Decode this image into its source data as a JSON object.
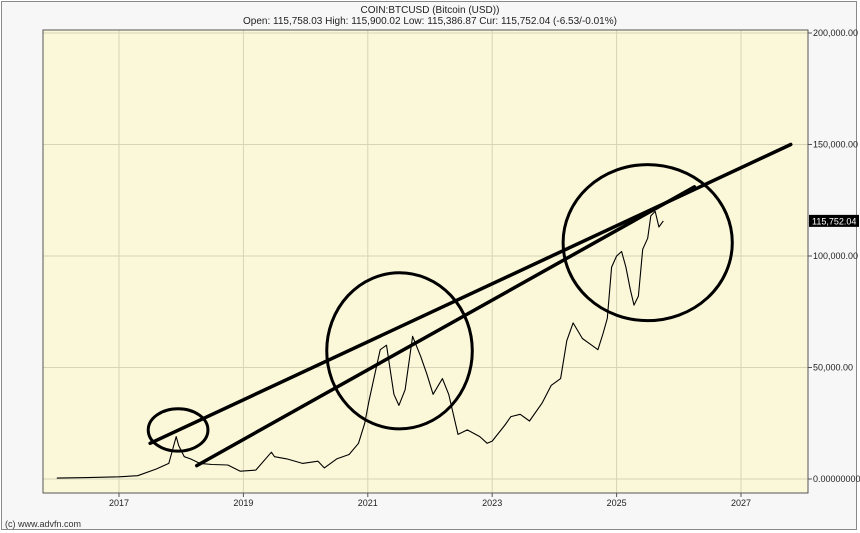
{
  "header": {
    "symbol_line": "COIN:BTCUSD (Bitcoin (USD))",
    "ohlc_line": "Open: 115,758.03 High: 115,900.02 Low: 115,386.87 Cur: 115,752.04 (-6.53/-0.01%)"
  },
  "footer": {
    "credit": "(c) www.advfn.com"
  },
  "colors": {
    "plot_background": "#fbf8d9",
    "grid": "#d6d3b8",
    "price_line": "#000000",
    "annotation": "#000000",
    "current_label_bg": "#000000"
  },
  "chart_data": {
    "type": "line",
    "title": "COIN:BTCUSD (Bitcoin (USD))",
    "xlabel": "",
    "ylabel": "",
    "xlim": [
      2016.0,
      2028.0
    ],
    "ylim": [
      0,
      200000
    ],
    "x_ticks": [
      2017,
      2019,
      2021,
      2023,
      2025,
      2027
    ],
    "x_tick_labels": [
      "2017",
      "2019",
      "2021",
      "2023",
      "2025",
      "2027"
    ],
    "y_ticks": [
      0,
      50000,
      100000,
      150000,
      200000
    ],
    "y_tick_labels": [
      "0.00000000",
      "50,000.00",
      "100,000.00",
      "150,000.00",
      "200,000.00"
    ],
    "y_axis_side": "right",
    "grid": true,
    "current_value": 115752.04,
    "current_value_label": "115,752.04",
    "series": [
      {
        "x": [
          2016.0,
          2016.5,
          2017.0,
          2017.3,
          2017.6,
          2017.8,
          2017.92,
          2017.96,
          2018.05,
          2018.15,
          2018.3,
          2018.5,
          2018.75,
          2018.95,
          2019.2,
          2019.45,
          2019.5,
          2019.7,
          2019.95,
          2020.2,
          2020.3,
          2020.5,
          2020.7,
          2020.85,
          2020.95,
          2021.02,
          2021.12,
          2021.2,
          2021.3,
          2021.42,
          2021.5,
          2021.6,
          2021.72,
          2021.85,
          2021.95,
          2022.05,
          2022.2,
          2022.3,
          2022.45,
          2022.6,
          2022.8,
          2022.92,
          2023.0,
          2023.2,
          2023.3,
          2023.45,
          2023.6,
          2023.8,
          2023.95,
          2024.1,
          2024.2,
          2024.3,
          2024.45,
          2024.6,
          2024.7,
          2024.78,
          2024.85,
          2024.92,
          2025.0,
          2025.08,
          2025.15,
          2025.22,
          2025.28,
          2025.35,
          2025.42,
          2025.5,
          2025.55,
          2025.62,
          2025.68,
          2025.75
        ],
        "values": [
          400,
          650,
          1000,
          1500,
          4500,
          7000,
          19000,
          15000,
          10000,
          9000,
          7000,
          6500,
          6300,
          3500,
          4000,
          12000,
          10000,
          9000,
          7000,
          8000,
          5000,
          9000,
          11000,
          16000,
          25000,
          35000,
          48000,
          58000,
          60000,
          38000,
          33000,
          40000,
          64000,
          55000,
          47000,
          38000,
          45000,
          38000,
          20000,
          22000,
          19000,
          16000,
          17000,
          24000,
          28000,
          29000,
          26000,
          34000,
          42000,
          45000,
          62000,
          70000,
          63000,
          60000,
          58000,
          65000,
          72000,
          95000,
          100000,
          102000,
          95000,
          85000,
          78000,
          82000,
          103000,
          108000,
          118000,
          120000,
          113000,
          115752
        ]
      }
    ],
    "annotations": {
      "trend_lines": [
        {
          "x": [
            2017.5,
            2027.8
          ],
          "y": [
            16000,
            150000
          ]
        },
        {
          "x": [
            2018.25,
            2026.25
          ],
          "y": [
            6000,
            131000
          ]
        }
      ],
      "ellipses": [
        {
          "cx": 2017.95,
          "cy": 22000,
          "rx": 0.48,
          "ry": 9500
        },
        {
          "cx": 2021.51,
          "cy": 57500,
          "rx": 1.17,
          "ry": 35000
        },
        {
          "cx": 2025.5,
          "cy": 106000,
          "rx": 1.36,
          "ry": 35000
        }
      ]
    }
  }
}
